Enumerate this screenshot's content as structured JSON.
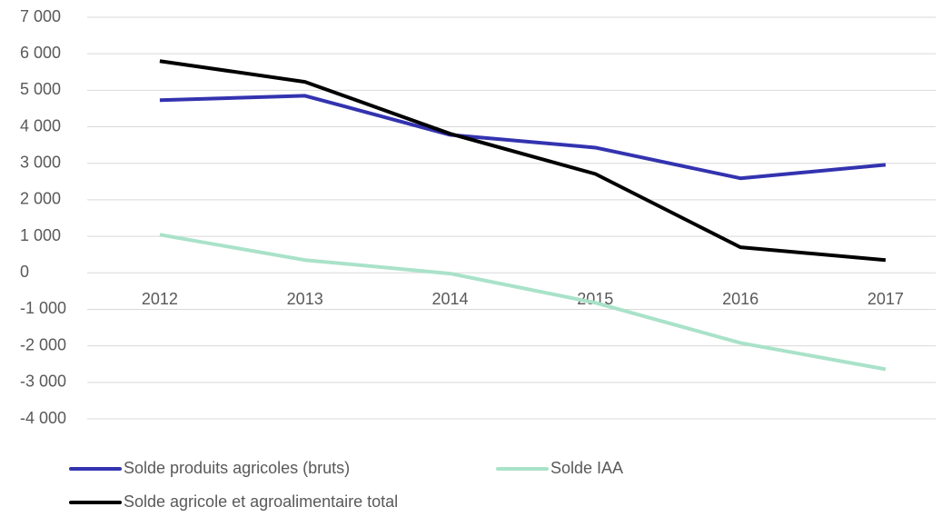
{
  "chart_data": {
    "type": "line",
    "categories": [
      "2012",
      "2013",
      "2014",
      "2015",
      "2016",
      "2017"
    ],
    "series": [
      {
        "name": "Solde produits agricoles (bruts)",
        "color": "#3333b0",
        "values": [
          4730,
          4850,
          3780,
          3430,
          2590,
          2960
        ]
      },
      {
        "name": "Solde IAA",
        "color": "#a9e2c9",
        "values": [
          1045,
          350,
          -20,
          -820,
          -1920,
          -2640
        ]
      },
      {
        "name": "Solde agricole et agroalimentaire total",
        "color": "#000000",
        "values": [
          5800,
          5230,
          3810,
          2710,
          700,
          350
        ]
      }
    ],
    "ylim": [
      -4000,
      7000
    ],
    "yticks": [
      {
        "value": -4000,
        "label": "-4 000"
      },
      {
        "value": -3000,
        "label": "-3 000"
      },
      {
        "value": -2000,
        "label": "-2 000"
      },
      {
        "value": -1000,
        "label": "-1 000"
      },
      0,
      {
        "value": 1000,
        "label": "1 000"
      },
      {
        "value": 2000,
        "label": "2 000"
      },
      {
        "value": 3000,
        "label": "3 000"
      },
      {
        "value": 4000,
        "label": "4 000"
      },
      {
        "value": 5000,
        "label": "5 000"
      },
      {
        "value": 6000,
        "label": "6 000"
      },
      {
        "value": 7000,
        "label": "7 000"
      }
    ],
    "grid": true,
    "legend": "bottom"
  }
}
